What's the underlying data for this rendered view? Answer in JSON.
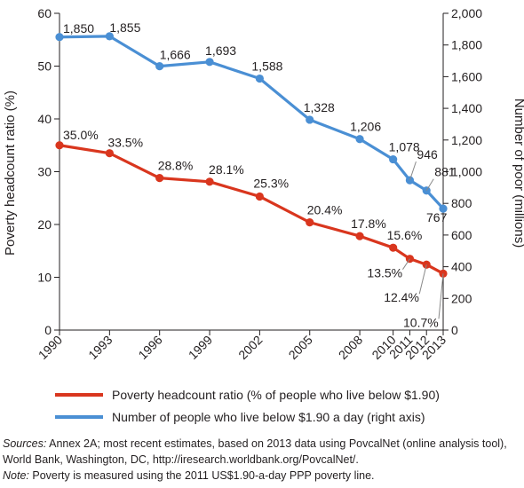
{
  "chart_data": {
    "type": "line",
    "x": [
      "1990",
      "1993",
      "1996",
      "1999",
      "2002",
      "2005",
      "2008",
      "2010",
      "2011",
      "2012",
      "2013"
    ],
    "xnum": [
      1990,
      1993,
      1996,
      1999,
      2002,
      2005,
      2008,
      2010,
      2011,
      2012,
      2013
    ],
    "series": [
      {
        "name": "Poverty headcount ratio (% of people who live below $1.90)",
        "axis": "left",
        "color": "#d9361e",
        "values": [
          35.0,
          33.5,
          28.8,
          28.1,
          25.3,
          20.4,
          17.8,
          15.6,
          13.5,
          12.4,
          10.7
        ],
        "labels": [
          "35.0%",
          "33.5%",
          "28.8%",
          "28.1%",
          "25.3%",
          "20.4%",
          "17.8%",
          "15.6%",
          "13.5%",
          "12.4%",
          "10.7%"
        ]
      },
      {
        "name": "Number of people who live below $1.90 a day (right axis)",
        "axis": "right",
        "color": "#4a8fd4",
        "values": [
          1850,
          1855,
          1666,
          1693,
          1588,
          1328,
          1206,
          1078,
          946,
          881,
          767
        ],
        "labels": [
          "1,850",
          "1,855",
          "1,666",
          "1,693",
          "1,588",
          "1,328",
          "1,206",
          "1,078",
          "946",
          "881",
          "767"
        ]
      }
    ],
    "ylabel": "Poverty headcount ratio (%)",
    "ylim": [
      0,
      60
    ],
    "yticks": [
      "0",
      "10",
      "20",
      "30",
      "40",
      "50",
      "60"
    ],
    "y2label": "Number of poor (millions)",
    "y2lim": [
      0,
      2000
    ],
    "y2ticks": [
      "0",
      "200",
      "400",
      "600",
      "800",
      "1,000",
      "1,200",
      "1,400",
      "1,600",
      "1,800",
      "2,000"
    ],
    "grid": false,
    "legend_position": "bottom"
  },
  "notes": {
    "sources_label": "Sources:",
    "sources_text": " Annex 2A; most recent estimates, based on 2013 data using PovcalNet (online analysis tool), World Bank, Washington, DC, http://iresearch.worldbank.org/PovcalNet/.",
    "note_label": "Note:",
    "note_text": " Poverty is measured using the 2011 US$1.90-a-day PPP poverty line."
  }
}
